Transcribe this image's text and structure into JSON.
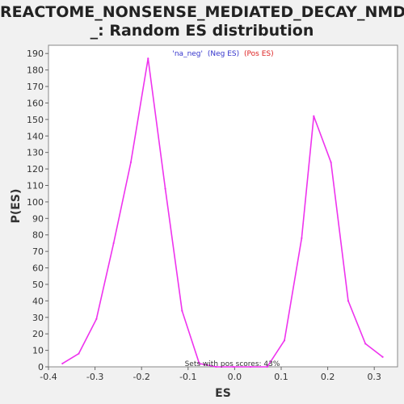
{
  "title_line1": "REACTOME_NONSENSE_MEDIATED_DECAY_NMD",
  "title_line2": "_: Random ES distribution",
  "chart_data": {
    "type": "line",
    "title": "REACTOME_NONSENSE_MEDIATED_DECAY_NMD_: Random ES distribution",
    "xlabel": "ES",
    "ylabel": "P(ES)",
    "xlim": [
      -0.4,
      0.35
    ],
    "ylim": [
      0,
      195
    ],
    "xticks": [
      "-0.4",
      "-0.3",
      "-0.2",
      "-0.1",
      "0.0",
      "0.1",
      "0.2",
      "0.3"
    ],
    "yticks": [
      "0",
      "10",
      "20",
      "30",
      "40",
      "50",
      "60",
      "70",
      "80",
      "90",
      "100",
      "110",
      "120",
      "130",
      "140",
      "150",
      "160",
      "170",
      "180",
      "190"
    ],
    "legend": {
      "prefix": "'na_neg'",
      "neg_label": "(Neg ES)",
      "pos_label": "(Pos ES)",
      "neg_color": "#3333cc",
      "pos_color": "#dd2222",
      "placement": "top-center"
    },
    "annotation": "Sets with pos scores: 43%",
    "series": [
      {
        "color": "#ee33ee",
        "x": [
          -0.37,
          -0.335,
          -0.297,
          -0.26,
          -0.223,
          -0.186,
          -0.149,
          -0.113,
          -0.076,
          -0.04,
          -0.003,
          0.034,
          0.07,
          0.107,
          0.144,
          0.17,
          0.207,
          0.244,
          0.281,
          0.318
        ],
        "y": [
          2,
          8,
          29,
          75,
          124,
          187,
          108,
          34,
          2,
          0,
          0,
          0,
          0,
          16,
          78,
          152,
          124,
          40,
          14,
          6
        ]
      }
    ],
    "grid": false
  }
}
